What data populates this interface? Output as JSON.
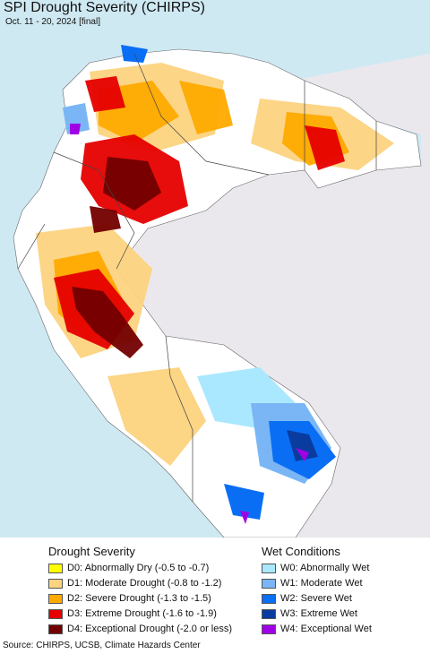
{
  "header": {
    "title": "SPI Drought Severity (CHIRPS)",
    "subtitle": "Oct. 11 - 20, 2024 [final]"
  },
  "map": {
    "colors": {
      "ocean": "#cfe9f3",
      "land": "#ffffff",
      "outside": "#ebe8ed"
    }
  },
  "legend": {
    "drought_heading": "Drought Severity",
    "wet_heading": "Wet Conditions",
    "drought": [
      {
        "label": "D0: Abnormally Dry (-0.5 to -0.7)",
        "color": "#ffff00"
      },
      {
        "label": "D1: Moderate Drought (-0.8 to -1.2)",
        "color": "#fcd37f"
      },
      {
        "label": "D2: Severe Drought (-1.3 to -1.5)",
        "color": "#ffaa00"
      },
      {
        "label": "D3: Extreme Drought (-1.6 to -1.9)",
        "color": "#e60000"
      },
      {
        "label": "D4: Exceptional Drought (-2.0 or less)",
        "color": "#730000"
      }
    ],
    "wet": [
      {
        "label": "W0: Abnormally Wet",
        "color": "#aae8ff"
      },
      {
        "label": "W1: Moderate Wet",
        "color": "#7ab6f5"
      },
      {
        "label": "W2: Severe Wet",
        "color": "#0a6ef5"
      },
      {
        "label": "W3: Extreme Wet",
        "color": "#0a3ca0"
      },
      {
        "label": "W4: Exceptional Wet",
        "color": "#a000e6"
      }
    ]
  },
  "footer": {
    "source": "Source: CHIRPS, UCSB, Climate Hazards Center"
  }
}
